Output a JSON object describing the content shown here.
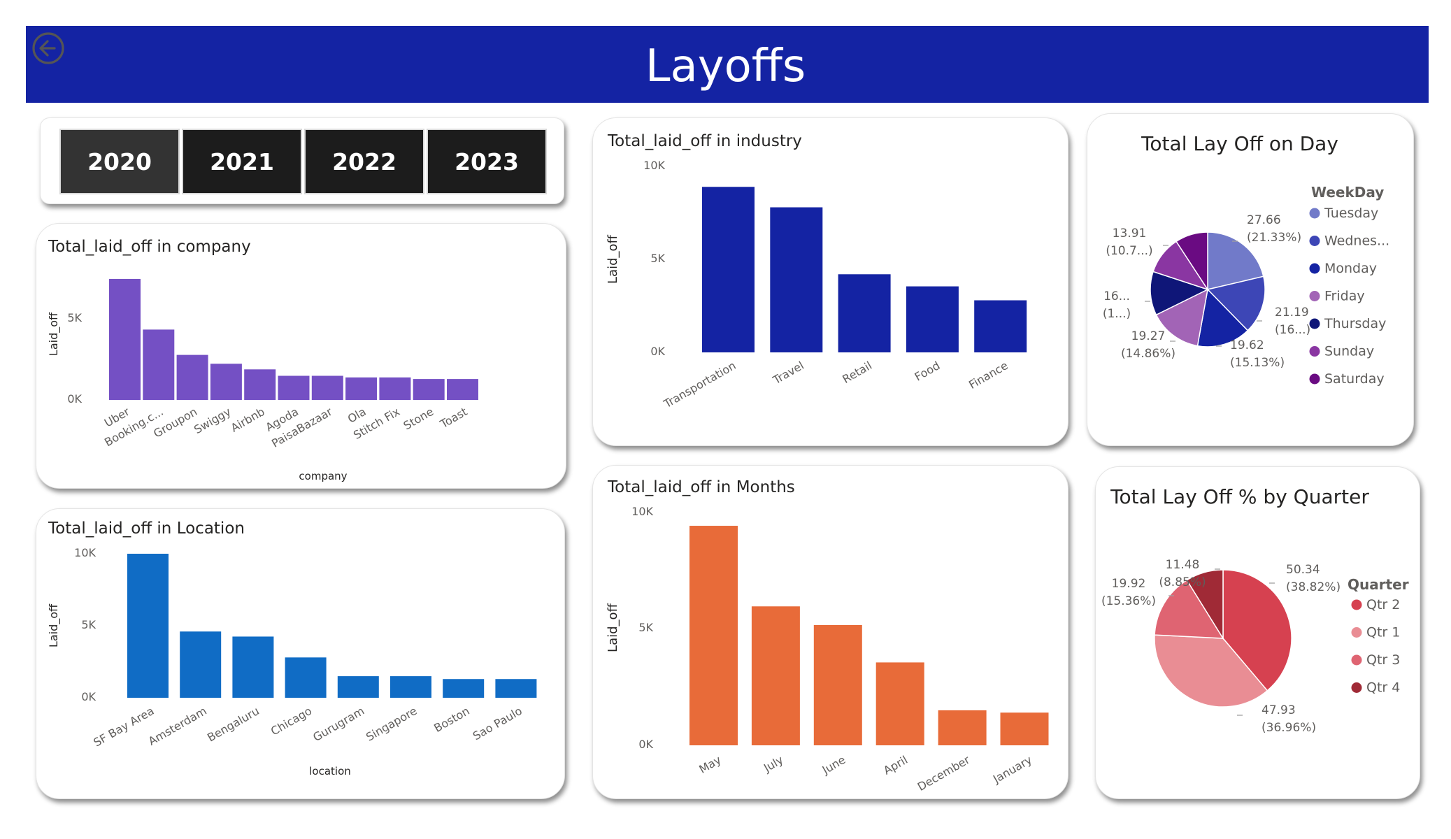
{
  "header": {
    "title": "Layoffs"
  },
  "slicer": {
    "years": [
      "2020",
      "2021",
      "2022",
      "2023"
    ],
    "selected": "2020"
  },
  "colors": {
    "header": "#1423a3",
    "company": "#7450c4",
    "industry": "#1423a3",
    "location": "#106cc5",
    "months": "#e86b39"
  },
  "icons": {
    "back": "back-arrow-circle-icon"
  },
  "charts": {
    "company": {
      "title": "Total_laid_off in company",
      "xlabel": "company",
      "ylabel": "Laid_off",
      "ticks": [
        "0K",
        "5K"
      ]
    },
    "industry": {
      "title": "Total_laid_off in industry",
      "ylabel": "Laid_off",
      "ticks": [
        "0K",
        "5K",
        "10K"
      ]
    },
    "location": {
      "title": "Total_laid_off in Location",
      "xlabel": "location",
      "ylabel": "Laid_off",
      "ticks": [
        "0K",
        "5K",
        "10K"
      ]
    },
    "months": {
      "title": "Total_laid_off in Months",
      "ylabel": "Laid_off",
      "ticks": [
        "0K",
        "5K",
        "10K"
      ]
    },
    "day": {
      "title": "Total Lay Off on Day",
      "legend_title": "WeekDay",
      "legend": [
        "Tuesday",
        "Wednes...",
        "Monday",
        "Friday",
        "Thursday",
        "Sunday",
        "Saturday"
      ]
    },
    "quarter": {
      "title": "Total Lay Off % by Quarter",
      "legend_title": "Quarter",
      "legend": [
        "Qtr 2",
        "Qtr 1",
        "Qtr 3",
        "Qtr 4"
      ]
    }
  },
  "chart_data": [
    {
      "id": "company",
      "type": "bar",
      "categories": [
        "Uber",
        "Booking.c...",
        "Groupon",
        "Swiggy",
        "Airbnb",
        "Agoda",
        "PaisaBazaar",
        "Ola",
        "Stitch Fix",
        "Stone",
        "Toast"
      ],
      "values": [
        7525,
        4375,
        2800,
        2250,
        1900,
        1500,
        1500,
        1400,
        1400,
        1300,
        1300
      ],
      "ylim": [
        0,
        8000
      ],
      "ylabel": "Laid_off",
      "xlabel": "company"
    },
    {
      "id": "industry",
      "type": "bar",
      "categories": [
        "Transportation",
        "Travel",
        "Retail",
        "Food",
        "Finance"
      ],
      "values": [
        8900,
        7800,
        4200,
        3550,
        2800
      ],
      "ylim": [
        0,
        10000
      ],
      "ylabel": "Laid_off"
    },
    {
      "id": "location",
      "type": "bar",
      "categories": [
        "SF Bay Area",
        "Amsterdam",
        "Bengaluru",
        "Chicago",
        "Gurugram",
        "Singapore",
        "Boston",
        "Sao Paulo"
      ],
      "values": [
        10000,
        4600,
        4250,
        2800,
        1500,
        1500,
        1300,
        1300
      ],
      "ylim": [
        0,
        10000
      ],
      "ylabel": "Laid_off",
      "xlabel": "location"
    },
    {
      "id": "months",
      "type": "bar",
      "categories": [
        "May",
        "July",
        "June",
        "April",
        "December",
        "January"
      ],
      "values": [
        9400,
        5950,
        5150,
        3550,
        1500,
        1400
      ],
      "ylim": [
        0,
        10000
      ],
      "ylabel": "Laid_off"
    },
    {
      "id": "day",
      "type": "pie",
      "labels": [
        "Tuesday",
        "Wednes...",
        "Monday",
        "Friday",
        "Thursday",
        "Sunday",
        "Saturday"
      ],
      "values": [
        27.66,
        21.19,
        19.62,
        19.27,
        16.0,
        13.91,
        11.95
      ],
      "colors": [
        "#717ac9",
        "#3d46b6",
        "#1423a3",
        "#a264b6",
        "#0f1678",
        "#8a36a2",
        "#6a0b82"
      ],
      "data_labels": [
        {
          "value": "27.66",
          "pct": "(21.33%)"
        },
        {
          "value": "21.19",
          "pct": "(16...)"
        },
        {
          "value": "19.62",
          "pct": "(15.13%)"
        },
        {
          "value": "19.27",
          "pct": "(14.86%)"
        },
        {
          "value": "16...",
          "pct": "(1...)"
        },
        {
          "value": "13.91",
          "pct": "(10.7...)"
        }
      ]
    },
    {
      "id": "quarter",
      "type": "pie",
      "labels": [
        "Qtr 2",
        "Qtr 1",
        "Qtr 3",
        "Qtr 4"
      ],
      "values": [
        50.34,
        47.93,
        19.92,
        11.48
      ],
      "colors": [
        "#d64150",
        "#e98d94",
        "#df6472",
        "#a02a36"
      ],
      "data_labels": [
        {
          "value": "50.34",
          "pct": "(38.82%)"
        },
        {
          "value": "47.93",
          "pct": "(36.96%)"
        },
        {
          "value": "19.92",
          "pct": "(15.36%)"
        },
        {
          "value": "11.48",
          "pct": "(8.85%)"
        }
      ]
    }
  ]
}
